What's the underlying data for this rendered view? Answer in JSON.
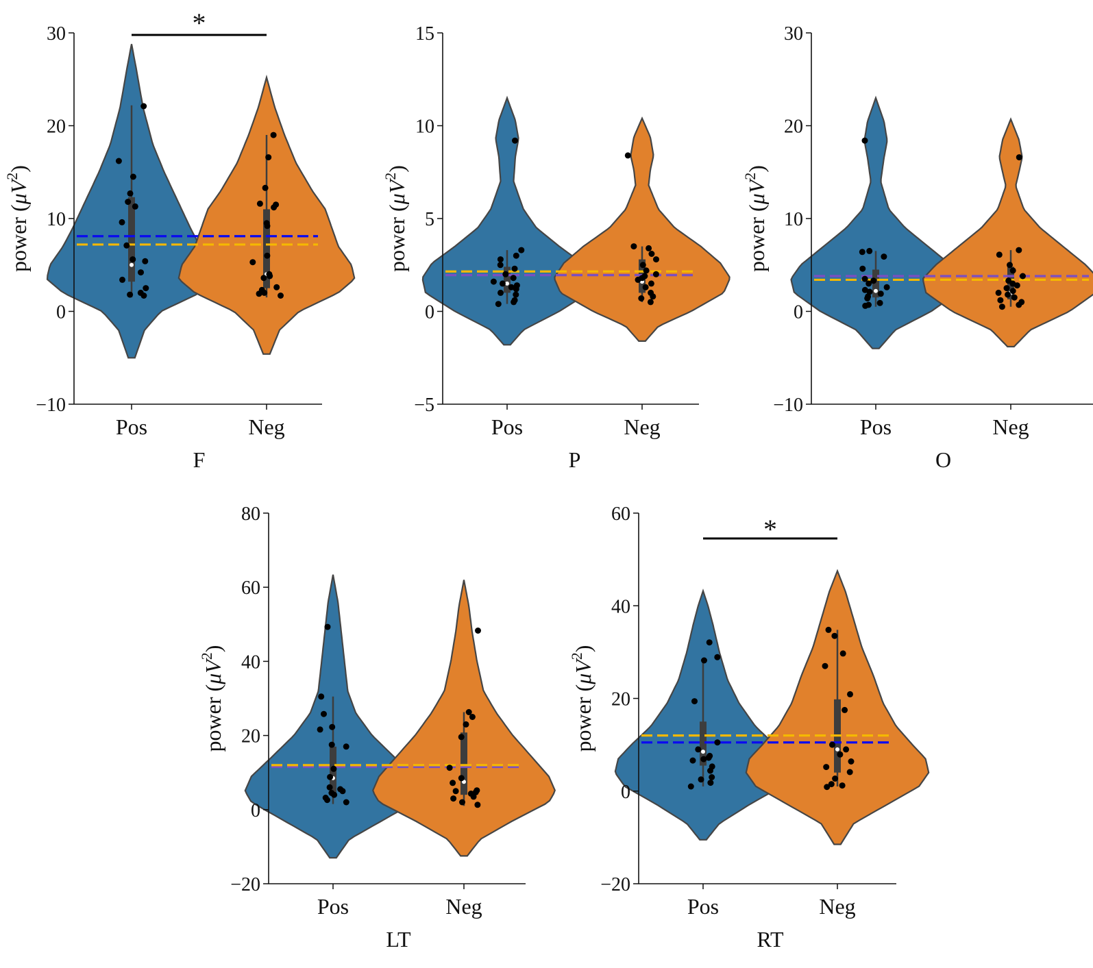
{
  "figure": {
    "ylabel_prefix": "power (",
    "ylabel_mu": "μ",
    "ylabel_V": "V",
    "ylabel_exp": "2",
    "ylabel_suffix": ")"
  },
  "colors": {
    "pos": "#3274a1",
    "neg": "#e1812c",
    "outline": "#454545",
    "box": "#3d3d3d",
    "points": "#000000",
    "dash_blue": "#0a0af0",
    "dash_orange": "#f5b800",
    "dash_purple": "#7a4fc2"
  },
  "chart_data": [
    {
      "type": "violin",
      "id": "F",
      "xlabel": "F",
      "categories": [
        "Pos",
        "Neg"
      ],
      "ylim": [
        -10,
        30
      ],
      "yticks": [
        -10,
        0,
        10,
        20,
        30
      ],
      "significance": "*",
      "ref_lines": [
        {
          "value": 8.1,
          "color": "blue"
        },
        {
          "value": 7.2,
          "color": "orange"
        }
      ],
      "series": [
        {
          "name": "Pos",
          "kde_range": [
            -5,
            28.8
          ],
          "profile": [
            [
              -5,
              0.02
            ],
            [
              -2,
              0.08
            ],
            [
              0,
              0.18
            ],
            [
              2,
              0.42
            ],
            [
              3.5,
              0.52
            ],
            [
              5,
              0.5
            ],
            [
              7,
              0.42
            ],
            [
              9,
              0.36
            ],
            [
              12,
              0.28
            ],
            [
              15,
              0.2
            ],
            [
              18,
              0.13
            ],
            [
              22,
              0.07
            ],
            [
              26,
              0.03
            ],
            [
              28.8,
              0
            ]
          ],
          "box": {
            "q1": 3.2,
            "median": 5.0,
            "q3": 12.3,
            "whisker_low": 1.5,
            "whisker_high": 22.2
          },
          "points": [
            22.1,
            16.2,
            14.5,
            11.8,
            12.7,
            11.3,
            9.6,
            7.1,
            5.6,
            5.4,
            4.2,
            3.4,
            2.5,
            2.0,
            1.8,
            1.7
          ]
        },
        {
          "name": "Neg",
          "kde_range": [
            -4.6,
            25.2
          ],
          "profile": [
            [
              -4.6,
              0.02
            ],
            [
              -2,
              0.08
            ],
            [
              0,
              0.2
            ],
            [
              2,
              0.44
            ],
            [
              3.5,
              0.54
            ],
            [
              5,
              0.52
            ],
            [
              7,
              0.44
            ],
            [
              9,
              0.4
            ],
            [
              11,
              0.36
            ],
            [
              13,
              0.28
            ],
            [
              16,
              0.18
            ],
            [
              19,
              0.11
            ],
            [
              22,
              0.05
            ],
            [
              25.2,
              0
            ]
          ],
          "box": {
            "q1": 2.5,
            "median": 4.0,
            "q3": 11.0,
            "whisker_low": 1.5,
            "whisker_high": 19.0
          },
          "points": [
            19.0,
            16.6,
            13.3,
            11.6,
            11.5,
            11.2,
            9.5,
            9.2,
            6.0,
            5.3,
            4.0,
            3.8,
            3.6,
            2.6,
            2.3,
            2.0,
            1.9,
            1.7
          ]
        }
      ]
    },
    {
      "type": "violin",
      "id": "P",
      "xlabel": "P",
      "categories": [
        "Pos",
        "Neg"
      ],
      "ylim": [
        -5,
        15
      ],
      "yticks": [
        -5,
        0,
        5,
        10,
        15
      ],
      "significance": "",
      "ref_lines": [
        {
          "value": 1.95,
          "color": "purple"
        },
        {
          "value": 2.15,
          "color": "orange"
        }
      ],
      "series": [
        {
          "name": "Pos",
          "kde_range": [
            -1.8,
            11.5
          ],
          "profile": [
            [
              -1.8,
              0.02
            ],
            [
              -1,
              0.1
            ],
            [
              0,
              0.32
            ],
            [
              1,
              0.5
            ],
            [
              1.8,
              0.52
            ],
            [
              2.6,
              0.46
            ],
            [
              3.5,
              0.32
            ],
            [
              4.5,
              0.18
            ],
            [
              5.5,
              0.1
            ],
            [
              7,
              0.04
            ],
            [
              8.3,
              0.05
            ],
            [
              9.3,
              0.07
            ],
            [
              10.3,
              0.05
            ],
            [
              11.5,
              0
            ]
          ],
          "box": {
            "q1": 1.0,
            "median": 1.5,
            "q3": 2.4,
            "whisker_low": 0.4,
            "whisker_high": 3.3
          },
          "points": [
            9.2,
            3.3,
            3.0,
            2.8,
            2.5,
            2.3,
            2.0,
            1.8,
            1.6,
            1.5,
            1.4,
            1.3,
            1.2,
            1.0,
            0.9,
            0.6,
            0.5,
            0.4
          ]
        },
        {
          "name": "Neg",
          "kde_range": [
            -1.6,
            10.4
          ],
          "profile": [
            [
              -1.6,
              0.02
            ],
            [
              -0.8,
              0.1
            ],
            [
              0,
              0.3
            ],
            [
              1,
              0.5
            ],
            [
              1.8,
              0.54
            ],
            [
              2.6,
              0.48
            ],
            [
              3.5,
              0.36
            ],
            [
              4.5,
              0.2
            ],
            [
              5.5,
              0.1
            ],
            [
              6.8,
              0.04
            ],
            [
              7.6,
              0.05
            ],
            [
              8.4,
              0.07
            ],
            [
              9.4,
              0.05
            ],
            [
              10.4,
              0
            ]
          ],
          "box": {
            "q1": 1.0,
            "median": 1.6,
            "q3": 2.8,
            "whisker_low": 0.5,
            "whisker_high": 3.5
          },
          "points": [
            8.4,
            3.5,
            3.4,
            3.1,
            2.8,
            2.5,
            2.2,
            2.0,
            1.9,
            1.8,
            1.7,
            1.5,
            1.3,
            1.0,
            0.8,
            0.7,
            0.5
          ]
        }
      ]
    },
    {
      "type": "violin",
      "id": "O",
      "xlabel": "O",
      "categories": [
        "Pos",
        "Neg"
      ],
      "ylim": [
        -10,
        30
      ],
      "yticks": [
        -10,
        0,
        10,
        20,
        30
      ],
      "significance": "",
      "ref_lines": [
        {
          "value": 3.8,
          "color": "purple"
        },
        {
          "value": 3.4,
          "color": "orange"
        }
      ],
      "series": [
        {
          "name": "Pos",
          "kde_range": [
            -4,
            23
          ],
          "profile": [
            [
              -4,
              0.02
            ],
            [
              -2,
              0.12
            ],
            [
              0,
              0.34
            ],
            [
              2,
              0.5
            ],
            [
              3.5,
              0.52
            ],
            [
              5,
              0.46
            ],
            [
              7,
              0.32
            ],
            [
              9,
              0.18
            ],
            [
              11,
              0.08
            ],
            [
              14,
              0.03
            ],
            [
              16.5,
              0.05
            ],
            [
              18.4,
              0.07
            ],
            [
              20.5,
              0.05
            ],
            [
              23,
              0
            ]
          ],
          "box": {
            "q1": 1.5,
            "median": 2.2,
            "q3": 4.5,
            "whisker_low": 0.5,
            "whisker_high": 6.5
          },
          "points": [
            18.4,
            6.5,
            6.4,
            5.9,
            4.6,
            3.5,
            3.3,
            3.0,
            2.6,
            2.3,
            2.1,
            1.9,
            1.6,
            1.4,
            0.9,
            0.7,
            0.6
          ]
        },
        {
          "name": "Neg",
          "kde_range": [
            -3.8,
            20.7
          ],
          "profile": [
            [
              -3.8,
              0.02
            ],
            [
              -2,
              0.12
            ],
            [
              0,
              0.36
            ],
            [
              2,
              0.52
            ],
            [
              3.5,
              0.54
            ],
            [
              5,
              0.46
            ],
            [
              7,
              0.32
            ],
            [
              9,
              0.18
            ],
            [
              11,
              0.08
            ],
            [
              13.5,
              0.03
            ],
            [
              15,
              0.05
            ],
            [
              16.6,
              0.07
            ],
            [
              18.5,
              0.05
            ],
            [
              20.7,
              0
            ]
          ],
          "box": {
            "q1": 1.3,
            "median": 2.0,
            "q3": 4.8,
            "whisker_low": 0.5,
            "whisker_high": 6.6
          },
          "points": [
            16.6,
            6.6,
            6.1,
            5.0,
            4.4,
            3.8,
            3.3,
            3.0,
            2.8,
            2.5,
            2.2,
            2.0,
            1.8,
            1.5,
            1.2,
            1.0,
            0.7,
            0.5
          ]
        }
      ]
    },
    {
      "type": "violin",
      "id": "LT",
      "xlabel": "LT",
      "categories": [
        "Pos",
        "Neg"
      ],
      "ylim": [
        -20,
        80
      ],
      "yticks": [
        -20,
        0,
        20,
        40,
        60,
        80
      ],
      "significance": "",
      "ref_lines": [
        {
          "value": 11.5,
          "color": "purple"
        },
        {
          "value": 12.0,
          "color": "orange"
        }
      ],
      "series": [
        {
          "name": "Pos",
          "kde_range": [
            -13,
            63.4
          ],
          "profile": [
            [
              -13,
              0.02
            ],
            [
              -8,
              0.1
            ],
            [
              -3,
              0.3
            ],
            [
              2,
              0.5
            ],
            [
              5,
              0.54
            ],
            [
              9,
              0.5
            ],
            [
              14,
              0.38
            ],
            [
              20,
              0.24
            ],
            [
              26,
              0.14
            ],
            [
              32,
              0.09
            ],
            [
              40,
              0.07
            ],
            [
              48,
              0.05
            ],
            [
              56,
              0.03
            ],
            [
              63.4,
              0
            ]
          ],
          "box": {
            "q1": 4.0,
            "median": 8.5,
            "q3": 17.0,
            "whisker_low": 1.5,
            "whisker_high": 30.5
          },
          "points": [
            49.3,
            30.5,
            25.8,
            22.3,
            21.6,
            17.5,
            17.0,
            11.0,
            8.8,
            6.0,
            5.5,
            5.0,
            4.5,
            4.0,
            3.2,
            2.6,
            2.0
          ]
        },
        {
          "name": "Neg",
          "kde_range": [
            -12.5,
            62
          ],
          "profile": [
            [
              -12.5,
              0.02
            ],
            [
              -8,
              0.1
            ],
            [
              -3,
              0.3
            ],
            [
              2,
              0.52
            ],
            [
              5,
              0.56
            ],
            [
              9,
              0.52
            ],
            [
              14,
              0.42
            ],
            [
              20,
              0.3
            ],
            [
              26,
              0.2
            ],
            [
              32,
              0.12
            ],
            [
              40,
              0.08
            ],
            [
              48,
              0.05
            ],
            [
              55,
              0.03
            ],
            [
              62,
              0
            ]
          ],
          "box": {
            "q1": 4.0,
            "median": 7.5,
            "q3": 20.8,
            "whisker_low": 1.0,
            "whisker_high": 26.3
          },
          "points": [
            48.3,
            26.3,
            25.0,
            23.0,
            19.6,
            11.3,
            8.5,
            7.2,
            5.2,
            5.0,
            4.7,
            4.3,
            3.5,
            3.0,
            2.0,
            1.3
          ]
        }
      ]
    },
    {
      "type": "violin",
      "id": "RT",
      "xlabel": "RT",
      "categories": [
        "Pos",
        "Neg"
      ],
      "ylim": [
        -20,
        60
      ],
      "yticks": [
        -20,
        0,
        20,
        40,
        60
      ],
      "significance": "*",
      "ref_lines": [
        {
          "value": 10.5,
          "color": "blue"
        },
        {
          "value": 12.0,
          "color": "orange"
        }
      ],
      "series": [
        {
          "name": "Pos",
          "kde_range": [
            -10.5,
            43.2
          ],
          "profile": [
            [
              -10.5,
              0.02
            ],
            [
              -7,
              0.1
            ],
            [
              -3,
              0.28
            ],
            [
              1,
              0.48
            ],
            [
              4,
              0.54
            ],
            [
              7,
              0.52
            ],
            [
              10,
              0.44
            ],
            [
              14,
              0.32
            ],
            [
              19,
              0.22
            ],
            [
              24,
              0.15
            ],
            [
              30,
              0.1
            ],
            [
              36,
              0.06
            ],
            [
              40,
              0.03
            ],
            [
              43.2,
              0
            ]
          ],
          "box": {
            "q1": 5.5,
            "median": 8.5,
            "q3": 15.0,
            "whisker_low": 1.0,
            "whisker_high": 28.0
          },
          "points": [
            32.1,
            28.9,
            28.2,
            19.4,
            10.5,
            9.0,
            7.6,
            7.2,
            6.9,
            6.6,
            5.3,
            4.4,
            3.0,
            2.5,
            1.8,
            1.0
          ]
        },
        {
          "name": "Neg",
          "kde_range": [
            -11.5,
            47.5
          ],
          "profile": [
            [
              -11.5,
              0.02
            ],
            [
              -7,
              0.1
            ],
            [
              -3,
              0.3
            ],
            [
              1,
              0.5
            ],
            [
              4,
              0.56
            ],
            [
              7,
              0.54
            ],
            [
              10,
              0.46
            ],
            [
              14,
              0.36
            ],
            [
              19,
              0.28
            ],
            [
              25,
              0.22
            ],
            [
              31,
              0.15
            ],
            [
              37,
              0.1
            ],
            [
              43,
              0.05
            ],
            [
              47.5,
              0
            ]
          ],
          "box": {
            "q1": 4.0,
            "median": 9.0,
            "q3": 19.8,
            "whisker_low": 1.0,
            "whisker_high": 34.8
          },
          "points": [
            34.8,
            33.5,
            29.7,
            27.0,
            20.9,
            17.5,
            10.0,
            9.0,
            7.9,
            6.4,
            5.2,
            4.1,
            2.7,
            1.5,
            1.2,
            0.9
          ]
        }
      ]
    }
  ]
}
